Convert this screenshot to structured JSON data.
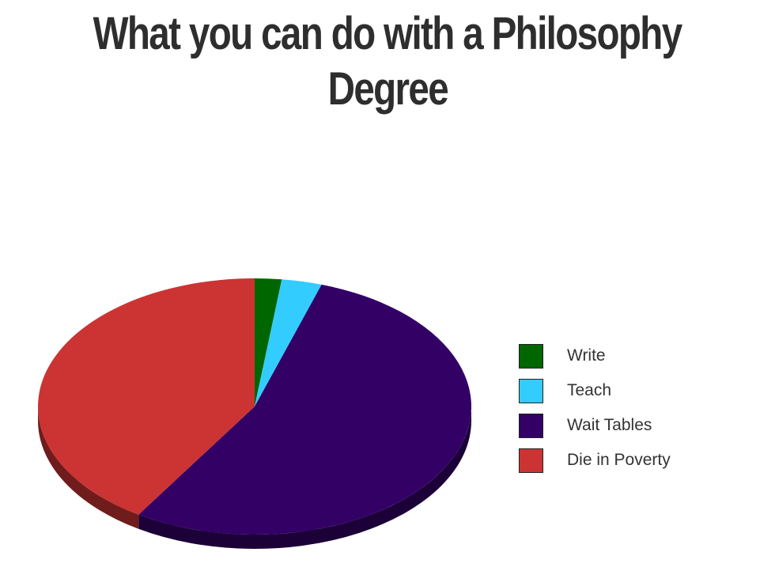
{
  "chart_data": {
    "type": "pie",
    "style": "3d",
    "title_lines": [
      "What you can do with a Philosophy",
      "Degree"
    ],
    "categories": [
      "Write",
      "Teach",
      "Wait Tables",
      "Die in Poverty"
    ],
    "values": [
      2,
      3,
      54,
      41
    ],
    "unit": "percent (estimated)",
    "colors": [
      "#006600",
      "#33ccff",
      "#330066",
      "#cc3333"
    ],
    "legend_position": "right"
  }
}
